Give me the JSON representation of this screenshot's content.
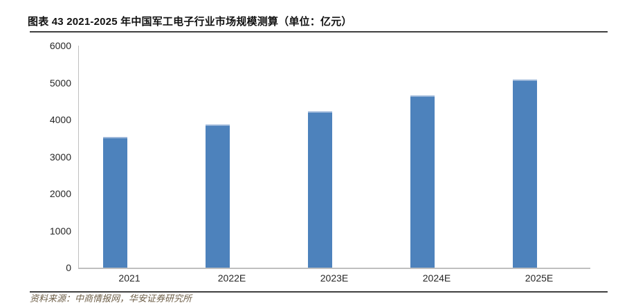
{
  "header": {
    "title": "图表 43 2021-2025 年中国军工电子行业市场规模测算（单位：亿元）"
  },
  "footer": {
    "source": "资料来源：中商情报网，华安证券研究所"
  },
  "chart_data": {
    "type": "bar",
    "title": "2021-2025 年中国军工电子行业市场规模测算",
    "unit": "亿元",
    "categories": [
      "2021",
      "2022E",
      "2023E",
      "2024E",
      "2025E"
    ],
    "values": [
      3540,
      3870,
      4230,
      4645,
      5080
    ],
    "xlabel": "",
    "ylabel": "",
    "ylim": [
      0,
      6000
    ],
    "ytick_interval": 1000,
    "ytick_labels": [
      "0",
      "1000",
      "2000",
      "3000",
      "4000",
      "5000",
      "6000"
    ],
    "grid": false,
    "legend_position": "none",
    "bar_color": "#4d82bc",
    "bar_top_highlight": "#9db8da",
    "axis_color": "#bfbfbf",
    "tick_text_color": "#262626"
  }
}
